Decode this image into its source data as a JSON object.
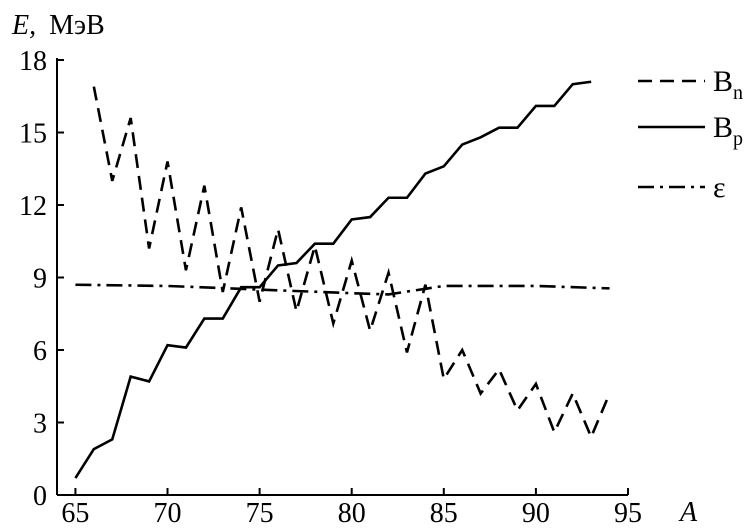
{
  "chart_data": {
    "type": "line",
    "title": "",
    "xlabel": "A",
    "ylabel_symbol": "E,",
    "ylabel_unit": "МэВ",
    "xlim": [
      64,
      95
    ],
    "ylim": [
      0,
      18
    ],
    "xticks": [
      65,
      70,
      75,
      80,
      85,
      90,
      95
    ],
    "yticks": [
      0,
      3,
      6,
      9,
      12,
      15,
      18
    ],
    "grid": false,
    "legend_position": "right",
    "series": [
      {
        "name": "B",
        "subscript": "n",
        "style": "dashed",
        "x": [
          66,
          67,
          68,
          69,
          70,
          71,
          72,
          73,
          74,
          75,
          76,
          77,
          78,
          79,
          80,
          81,
          82,
          83,
          84,
          85,
          86,
          87,
          88,
          89,
          90,
          91,
          92,
          93,
          94
        ],
        "y": [
          16.9,
          13.0,
          15.6,
          10.2,
          13.8,
          9.3,
          12.8,
          8.4,
          11.9,
          8.0,
          11.0,
          7.6,
          10.3,
          7.1,
          9.7,
          6.8,
          9.2,
          5.9,
          8.7,
          4.8,
          6.0,
          4.2,
          5.2,
          3.5,
          4.6,
          2.6,
          4.2,
          2.4,
          4.2
        ]
      },
      {
        "name": "B",
        "subscript": "p",
        "style": "solid",
        "x": [
          65,
          66,
          67,
          68,
          69,
          70,
          71,
          72,
          73,
          74,
          75,
          76,
          77,
          78,
          79,
          80,
          81,
          82,
          83,
          84,
          85,
          86,
          87,
          88,
          89,
          90,
          91,
          92,
          93
        ],
        "y": [
          0.7,
          1.9,
          2.3,
          4.9,
          4.7,
          6.2,
          6.1,
          7.3,
          7.3,
          8.6,
          8.6,
          9.5,
          9.6,
          10.4,
          10.4,
          11.4,
          11.5,
          12.3,
          12.3,
          13.3,
          13.6,
          14.5,
          14.8,
          15.2,
          15.2,
          16.1,
          16.1,
          17.0,
          17.1
        ]
      },
      {
        "name": "ε",
        "subscript": "",
        "style": "dashdot",
        "x": [
          65,
          70,
          75,
          80,
          82,
          85,
          90,
          94
        ],
        "y": [
          8.7,
          8.65,
          8.5,
          8.35,
          8.3,
          8.65,
          8.65,
          8.55
        ]
      }
    ]
  }
}
